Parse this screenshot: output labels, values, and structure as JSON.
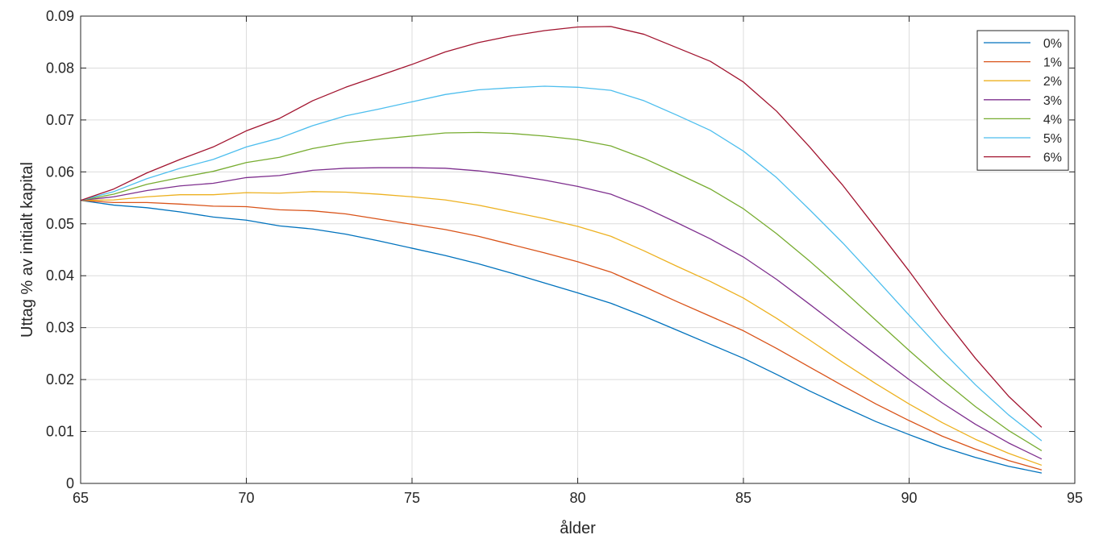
{
  "chart_data": {
    "type": "line",
    "title": "",
    "xlabel": "ålder",
    "ylabel": "Uttag % av initialt kapital",
    "xlim": [
      65,
      95
    ],
    "ylim": [
      0,
      0.09
    ],
    "xticks": [
      "65",
      "70",
      "75",
      "80",
      "85",
      "90",
      "95"
    ],
    "yticks": [
      "0",
      "0.01",
      "0.02",
      "0.03",
      "0.04",
      "0.05",
      "0.06",
      "0.07",
      "0.08",
      "0.09"
    ],
    "grid": true,
    "legend_position": "top-right",
    "x": [
      65,
      66,
      67,
      68,
      69,
      70,
      71,
      72,
      73,
      74,
      75,
      76,
      77,
      78,
      79,
      80,
      81,
      82,
      83,
      84,
      85,
      86,
      87,
      88,
      89,
      90,
      91,
      92,
      93,
      94
    ],
    "series": [
      {
        "name": "0%",
        "color": "#0072BD",
        "values": [
          0.0545,
          0.0536,
          0.0531,
          0.0523,
          0.0513,
          0.0507,
          0.0496,
          0.049,
          0.048,
          0.0467,
          0.0453,
          0.0439,
          0.0423,
          0.0405,
          0.0386,
          0.0367,
          0.0347,
          0.0322,
          0.0295,
          0.0268,
          0.0241,
          0.021,
          0.0178,
          0.0148,
          0.0119,
          0.0094,
          0.007,
          0.005,
          0.0033,
          0.002
        ]
      },
      {
        "name": "1%",
        "color": "#D95319",
        "values": [
          0.0545,
          0.0541,
          0.0541,
          0.0538,
          0.0534,
          0.0533,
          0.0527,
          0.0525,
          0.0519,
          0.0509,
          0.0499,
          0.0489,
          0.0476,
          0.046,
          0.0444,
          0.0427,
          0.0407,
          0.0379,
          0.035,
          0.0322,
          0.0294,
          0.026,
          0.0224,
          0.0188,
          0.0153,
          0.0121,
          0.0091,
          0.0066,
          0.0044,
          0.0026
        ]
      },
      {
        "name": "2%",
        "color": "#EDB120",
        "values": [
          0.0545,
          0.0546,
          0.0552,
          0.0556,
          0.0556,
          0.056,
          0.0559,
          0.0562,
          0.0561,
          0.0557,
          0.0552,
          0.0546,
          0.0536,
          0.0523,
          0.051,
          0.0495,
          0.0476,
          0.0448,
          0.0418,
          0.0389,
          0.0357,
          0.0318,
          0.0276,
          0.0233,
          0.0192,
          0.0153,
          0.0117,
          0.0085,
          0.0058,
          0.0035
        ]
      },
      {
        "name": "3%",
        "color": "#7E2F8E",
        "values": [
          0.0545,
          0.0552,
          0.0564,
          0.0573,
          0.0578,
          0.0589,
          0.0593,
          0.0603,
          0.0607,
          0.0608,
          0.0608,
          0.0607,
          0.0602,
          0.0594,
          0.0584,
          0.0572,
          0.0557,
          0.0532,
          0.0502,
          0.0471,
          0.0436,
          0.0393,
          0.0345,
          0.0296,
          0.0248,
          0.02,
          0.0155,
          0.0114,
          0.0078,
          0.0047
        ]
      },
      {
        "name": "4%",
        "color": "#77AC30",
        "values": [
          0.0545,
          0.0557,
          0.0576,
          0.0589,
          0.0601,
          0.0618,
          0.0628,
          0.0645,
          0.0656,
          0.0663,
          0.0669,
          0.0675,
          0.0676,
          0.0674,
          0.0669,
          0.0662,
          0.065,
          0.0626,
          0.0597,
          0.0567,
          0.0529,
          0.0481,
          0.0428,
          0.0372,
          0.0314,
          0.0256,
          0.02,
          0.0148,
          0.0102,
          0.0063
        ]
      },
      {
        "name": "5%",
        "color": "#4DBEEE",
        "values": [
          0.0545,
          0.0562,
          0.0587,
          0.0607,
          0.0624,
          0.0648,
          0.0665,
          0.0689,
          0.0708,
          0.0721,
          0.0735,
          0.0749,
          0.0758,
          0.0762,
          0.0765,
          0.0763,
          0.0757,
          0.0737,
          0.0709,
          0.068,
          0.064,
          0.0589,
          0.0527,
          0.0463,
          0.0394,
          0.0324,
          0.0255,
          0.019,
          0.0132,
          0.0082
        ]
      },
      {
        "name": "6%",
        "color": "#A2142F",
        "values": [
          0.0545,
          0.0567,
          0.0598,
          0.0624,
          0.0648,
          0.0679,
          0.0703,
          0.0737,
          0.0763,
          0.0785,
          0.0807,
          0.0831,
          0.0849,
          0.0862,
          0.0872,
          0.0879,
          0.088,
          0.0865,
          0.0839,
          0.0813,
          0.0773,
          0.0717,
          0.0648,
          0.0574,
          0.0492,
          0.0409,
          0.0322,
          0.0241,
          0.0168,
          0.0108
        ]
      }
    ]
  }
}
